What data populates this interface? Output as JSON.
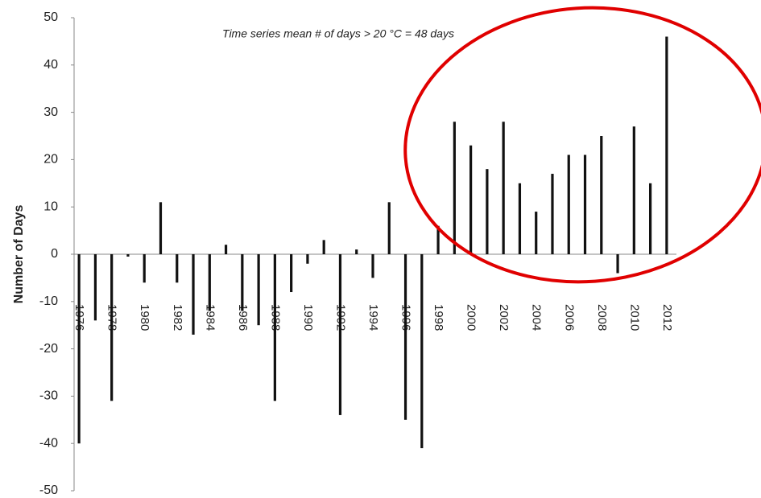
{
  "chart_data": {
    "type": "bar",
    "annotation": "Time series mean # of days > 20 °C = 48 days",
    "y_label": "Number of Days",
    "categories": [
      "1976",
      null,
      "1978",
      null,
      "1980",
      null,
      "1982",
      null,
      "1984",
      null,
      "1986",
      null,
      "1988",
      null,
      "1990",
      null,
      "1992",
      null,
      "1994",
      null,
      "1996",
      null,
      "1998",
      null,
      "2000",
      null,
      "2002",
      null,
      "2004",
      null,
      "2006",
      null,
      "2008",
      null,
      "2010",
      null,
      "2012"
    ],
    "values": [
      -40,
      -14,
      -31,
      -0.5,
      -6,
      11,
      -6,
      -17,
      -12,
      2,
      -12,
      -15,
      -31,
      -8,
      -2,
      3,
      -34,
      1,
      -5,
      11,
      -35,
      -41,
      6,
      28,
      23,
      18,
      28,
      15,
      9,
      17,
      21,
      21,
      25,
      -4,
      27,
      15,
      46
    ],
    "color": "#111111",
    "ylim": [
      -50,
      50
    ],
    "yticks": [
      -50,
      -40,
      -30,
      -20,
      -10,
      0,
      10,
      20,
      30,
      40,
      50
    ],
    "grid": false
  }
}
